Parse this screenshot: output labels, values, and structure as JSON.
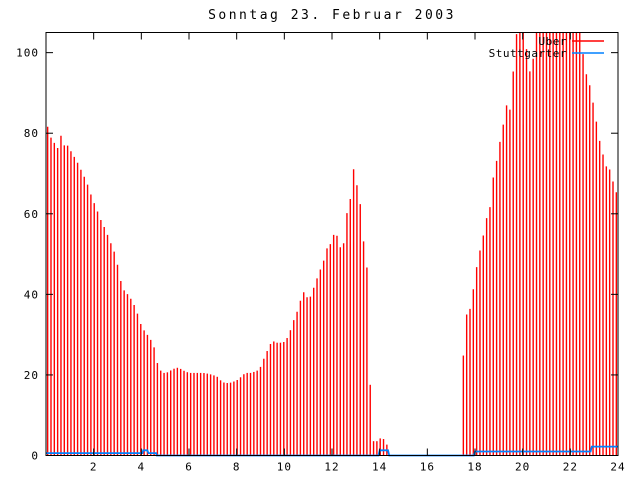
{
  "title": "Sonntag 23. Februar 2003",
  "legend": [
    {
      "label": "Uber",
      "color": "#ff0000",
      "style": "impulses"
    },
    {
      "label": "Stuttgarter",
      "color": "#0080ff",
      "style": "line"
    }
  ],
  "colors": {
    "bars": "#ff0000",
    "line": "#0080ff",
    "frame": "#000000",
    "background": "#ffffff"
  },
  "chart_data": {
    "type": "bar",
    "title": "Sonntag 23. Februar 2003",
    "xlabel": "",
    "ylabel": "",
    "xlim": [
      0,
      24
    ],
    "ylim": [
      0,
      105
    ],
    "x_ticks": [
      2,
      4,
      6,
      8,
      10,
      12,
      14,
      16,
      18,
      20,
      22,
      24
    ],
    "y_ticks": [
      0,
      20,
      40,
      60,
      80,
      100
    ],
    "grid": false,
    "legend_position": "top-right-inside",
    "bar_step_hours": 0.13953,
    "bar_start_hour": 0.0698,
    "clip_value": 105,
    "series": [
      {
        "name": "Uber",
        "type": "impulses",
        "color": "#ff0000",
        "envelope_points": [
          [
            0.0,
            83
          ],
          [
            0.1,
            81
          ],
          [
            0.2,
            79
          ],
          [
            0.3,
            78
          ],
          [
            0.42,
            77
          ],
          [
            0.52,
            76
          ],
          [
            0.6,
            79.5
          ],
          [
            0.7,
            79
          ],
          [
            0.8,
            76
          ],
          [
            0.9,
            77
          ],
          [
            1.0,
            76
          ],
          [
            1.15,
            74.5
          ],
          [
            1.3,
            73
          ],
          [
            1.5,
            70.5
          ],
          [
            1.7,
            68
          ],
          [
            1.9,
            64.5
          ],
          [
            2.1,
            61.5
          ],
          [
            2.3,
            58.5
          ],
          [
            2.5,
            56
          ],
          [
            2.7,
            53
          ],
          [
            2.9,
            50
          ],
          [
            3.05,
            46
          ],
          [
            3.2,
            41.5
          ],
          [
            3.35,
            40.5
          ],
          [
            3.5,
            39.5
          ],
          [
            3.65,
            38
          ],
          [
            3.8,
            36
          ],
          [
            3.92,
            33.5
          ],
          [
            4.05,
            31.5
          ],
          [
            4.2,
            30.5
          ],
          [
            4.35,
            29
          ],
          [
            4.5,
            28
          ],
          [
            4.62,
            24
          ],
          [
            4.75,
            21.5
          ],
          [
            4.9,
            20.5
          ],
          [
            5.05,
            20.5
          ],
          [
            5.2,
            21
          ],
          [
            5.35,
            21.5
          ],
          [
            5.5,
            21.8
          ],
          [
            5.65,
            21.5
          ],
          [
            5.8,
            21
          ],
          [
            6.0,
            20.5
          ],
          [
            6.3,
            20.5
          ],
          [
            6.6,
            20.5
          ],
          [
            6.8,
            20.3
          ],
          [
            7.0,
            20
          ],
          [
            7.2,
            19.5
          ],
          [
            7.35,
            18.5
          ],
          [
            7.5,
            18
          ],
          [
            7.7,
            18
          ],
          [
            7.95,
            18.5
          ],
          [
            8.1,
            19
          ],
          [
            8.25,
            20
          ],
          [
            8.4,
            20.5
          ],
          [
            8.6,
            20.5
          ],
          [
            8.85,
            21
          ],
          [
            9.0,
            22
          ],
          [
            9.1,
            23.5
          ],
          [
            9.25,
            25.5
          ],
          [
            9.35,
            27
          ],
          [
            9.5,
            28.5
          ],
          [
            9.65,
            28
          ],
          [
            9.8,
            28
          ],
          [
            9.95,
            28
          ],
          [
            10.1,
            29
          ],
          [
            10.2,
            30
          ],
          [
            10.35,
            33
          ],
          [
            10.5,
            35
          ],
          [
            10.6,
            37
          ],
          [
            10.72,
            39.3
          ],
          [
            10.85,
            41
          ],
          [
            11.0,
            38.5
          ],
          [
            11.15,
            40
          ],
          [
            11.3,
            43
          ],
          [
            11.45,
            45
          ],
          [
            11.58,
            47.5
          ],
          [
            11.7,
            49
          ],
          [
            11.85,
            53
          ],
          [
            12.0,
            52
          ],
          [
            12.1,
            56
          ],
          [
            12.25,
            54
          ],
          [
            12.4,
            50.5
          ],
          [
            12.5,
            53
          ],
          [
            12.62,
            60
          ],
          [
            12.75,
            63
          ],
          [
            12.85,
            67
          ],
          [
            12.92,
            72
          ],
          [
            13.0,
            68
          ],
          [
            13.15,
            65
          ],
          [
            13.3,
            54
          ],
          [
            13.45,
            49
          ],
          [
            13.55,
            33
          ],
          [
            13.65,
            4.5
          ],
          [
            13.8,
            3
          ],
          [
            13.95,
            4
          ],
          [
            14.1,
            4.5
          ],
          [
            14.25,
            3.5
          ],
          [
            14.38,
            1.5
          ],
          [
            14.45,
            0
          ],
          [
            17.42,
            0
          ],
          [
            17.47,
            10
          ],
          [
            17.5,
            24
          ],
          [
            17.65,
            35
          ],
          [
            17.8,
            36.5
          ],
          [
            17.95,
            42
          ],
          [
            18.1,
            48
          ],
          [
            18.25,
            52
          ],
          [
            18.4,
            56
          ],
          [
            18.52,
            60
          ],
          [
            18.65,
            62
          ],
          [
            18.8,
            71
          ],
          [
            18.95,
            74
          ],
          [
            19.1,
            80
          ],
          [
            19.22,
            83
          ],
          [
            19.32,
            87
          ],
          [
            19.45,
            85
          ],
          [
            19.55,
            91
          ],
          [
            19.65,
            99
          ],
          [
            19.75,
            105
          ],
          [
            20.1,
            105
          ],
          [
            20.25,
            95
          ],
          [
            20.4,
            96
          ],
          [
            20.55,
            105
          ],
          [
            22.4,
            105
          ],
          [
            22.55,
            99
          ],
          [
            22.65,
            95
          ],
          [
            22.78,
            93
          ],
          [
            22.9,
            89
          ],
          [
            23.05,
            85
          ],
          [
            23.15,
            80
          ],
          [
            23.28,
            77
          ],
          [
            23.4,
            74
          ],
          [
            23.55,
            71
          ],
          [
            23.7,
            71
          ],
          [
            23.85,
            66
          ],
          [
            23.97,
            65
          ]
        ]
      },
      {
        "name": "Stuttgarter",
        "type": "line",
        "color": "#0080ff",
        "points": [
          [
            0,
            0.6
          ],
          [
            4.05,
            0.6
          ],
          [
            4.08,
            1.3
          ],
          [
            4.25,
            1.3
          ],
          [
            4.3,
            0.6
          ],
          [
            4.62,
            0.6
          ],
          [
            4.65,
            0
          ],
          [
            13.95,
            0
          ],
          [
            14.0,
            1.3
          ],
          [
            14.35,
            1.3
          ],
          [
            14.4,
            0
          ],
          [
            17.95,
            0
          ],
          [
            18.0,
            1.0
          ],
          [
            22.85,
            1.0
          ],
          [
            22.9,
            2.2
          ],
          [
            24,
            2.2
          ]
        ]
      }
    ]
  }
}
